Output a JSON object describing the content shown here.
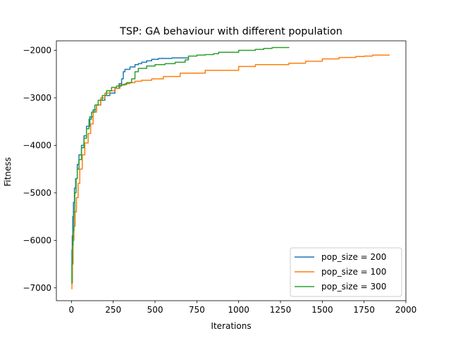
{
  "chart_data": {
    "type": "line",
    "title": "TSP: GA behaviour with different population",
    "xlabel": "Iterations",
    "ylabel": "Fitness",
    "xlim": [
      -90,
      2000
    ],
    "ylim": [
      -7270,
      -1800
    ],
    "xticks": [
      0,
      250,
      500,
      750,
      1000,
      1250,
      1500,
      1750,
      2000
    ],
    "yticks": [
      -7000,
      -6000,
      -5000,
      -4000,
      -3000,
      -2000
    ],
    "xtick_labels": [
      "0",
      "250",
      "500",
      "750",
      "1000",
      "1250",
      "1500",
      "1750",
      "2000"
    ],
    "ytick_labels": [
      "−7000",
      "−6000",
      "−5000",
      "−4000",
      "−3000",
      "−2000"
    ],
    "grid": false,
    "legend_position": "lower-right",
    "series": [
      {
        "name": "pop_size = 200",
        "color": "#1f77b4",
        "x": [
          0,
          3,
          5,
          8,
          12,
          18,
          25,
          35,
          45,
          60,
          75,
          90,
          110,
          130,
          150,
          175,
          200,
          230,
          260,
          285,
          300,
          310,
          320,
          350,
          380,
          400,
          420,
          450,
          480,
          520,
          600,
          700
        ],
        "y": [
          -6900,
          -6200,
          -5900,
          -5500,
          -5200,
          -4900,
          -4700,
          -4400,
          -4200,
          -4000,
          -3800,
          -3600,
          -3400,
          -3250,
          -3150,
          -3050,
          -2950,
          -2900,
          -2800,
          -2700,
          -2600,
          -2450,
          -2400,
          -2350,
          -2300,
          -2280,
          -2250,
          -2220,
          -2190,
          -2170,
          -2160,
          -2150
        ]
      },
      {
        "name": "pop_size = 100",
        "color": "#ff7f0e",
        "x": [
          0,
          3,
          6,
          10,
          15,
          22,
          30,
          40,
          50,
          65,
          80,
          100,
          115,
          130,
          150,
          175,
          200,
          230,
          260,
          290,
          320,
          350,
          380,
          420,
          480,
          550,
          650,
          800,
          1000,
          1100,
          1300,
          1400,
          1500,
          1600,
          1700,
          1750,
          1800,
          1900
        ],
        "y": [
          -7020,
          -6900,
          -6500,
          -6000,
          -5700,
          -5400,
          -5100,
          -4800,
          -4500,
          -4200,
          -3950,
          -3750,
          -3550,
          -3300,
          -3150,
          -3000,
          -2900,
          -2850,
          -2800,
          -2730,
          -2700,
          -2680,
          -2650,
          -2630,
          -2600,
          -2550,
          -2480,
          -2420,
          -2340,
          -2300,
          -2270,
          -2230,
          -2180,
          -2150,
          -2130,
          -2120,
          -2100,
          -2090
        ]
      },
      {
        "name": "pop_size = 300",
        "color": "#2ca02c",
        "x": [
          0,
          3,
          6,
          10,
          15,
          20,
          28,
          35,
          45,
          60,
          75,
          90,
          105,
          120,
          140,
          160,
          185,
          210,
          240,
          270,
          300,
          330,
          360,
          380,
          400,
          450,
          500,
          560,
          620,
          680,
          700,
          750,
          800,
          850,
          880,
          1000,
          1100,
          1150,
          1200,
          1300
        ],
        "y": [
          -6900,
          -6500,
          -6100,
          -5800,
          -5400,
          -5000,
          -4700,
          -4500,
          -4300,
          -4050,
          -3850,
          -3650,
          -3450,
          -3300,
          -3150,
          -3050,
          -2950,
          -2850,
          -2780,
          -2750,
          -2720,
          -2680,
          -2600,
          -2450,
          -2380,
          -2330,
          -2300,
          -2280,
          -2250,
          -2200,
          -2120,
          -2100,
          -2090,
          -2070,
          -2040,
          -2000,
          -1980,
          -1960,
          -1940,
          -1930
        ]
      }
    ]
  }
}
